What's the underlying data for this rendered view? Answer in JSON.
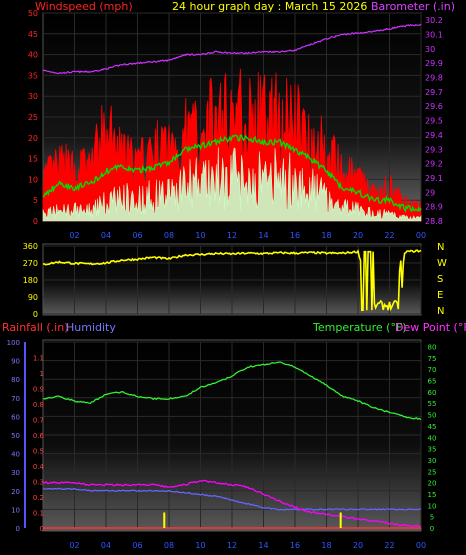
{
  "header": {
    "title": "24 hour graph day : March 15 2026",
    "wind_label": "Windspeed (mph)",
    "baro_label": "Barometer (.in)",
    "rain_label": "Rainfall (.in)",
    "humidity_label": "Humidity",
    "temp_label": "Temperature (°F)",
    "dew_label": "Dew Point (°F)"
  },
  "colors": {
    "wind": "#ff0000",
    "wind_avg": "#00dd00",
    "wind_low": "#ccffcc",
    "baro": "#cc33ff",
    "direction": "#ffff00",
    "temp": "#33ee33",
    "dew": "#ff00ff",
    "humidity": "#6666ff",
    "rain": "#ff3333",
    "rain_bar": "#ffff00",
    "title": "#ffff00"
  },
  "chart_data": [
    {
      "type": "line",
      "id": "wind_baro",
      "ylim": [
        0,
        50
      ],
      "y2lim": [
        28.8,
        30.25
      ],
      "yticks": [
        "0",
        "5",
        "10",
        "15",
        "20",
        "25",
        "30",
        "35",
        "40",
        "45",
        "50"
      ],
      "y2ticks": [
        "28.8",
        "28.9",
        "29",
        "29.1",
        "29.2",
        "29.3",
        "29.4",
        "29.5",
        "29.6",
        "29.7",
        "29.8",
        "29.9",
        "30",
        "30.1",
        "30.2"
      ],
      "xticks": [
        "02",
        "04",
        "06",
        "08",
        "10",
        "12",
        "14",
        "16",
        "18",
        "20",
        "22",
        "00"
      ],
      "x_hours": [
        0,
        1,
        2,
        3,
        4,
        5,
        6,
        7,
        8,
        9,
        10,
        11,
        12,
        13,
        14,
        15,
        16,
        17,
        18,
        19,
        20,
        21,
        22,
        23,
        24
      ],
      "series": [
        {
          "name": "Windspeed (mph)",
          "values": [
            12,
            16,
            15,
            16,
            26,
            19,
            16,
            20,
            21,
            25,
            27,
            30,
            33,
            31,
            30,
            31,
            29,
            25,
            20,
            14,
            12,
            8,
            10,
            5,
            5
          ]
        },
        {
          "name": "Wind average",
          "values": [
            6,
            9,
            8,
            9,
            12,
            13,
            12,
            13,
            14,
            17,
            18,
            19,
            20,
            20,
            19,
            19,
            17,
            15,
            12,
            8,
            7,
            5,
            5,
            3,
            3
          ]
        },
        {
          "name": "Wind low",
          "values": [
            2,
            3,
            3,
            3,
            5,
            7,
            6,
            7,
            8,
            10,
            11,
            12,
            12,
            12,
            12,
            12,
            11,
            9,
            7,
            4,
            3,
            2,
            2,
            1,
            1
          ]
        },
        {
          "name": "Barometer (.in)",
          "values": [
            29.85,
            29.83,
            29.84,
            29.84,
            29.86,
            29.89,
            29.9,
            29.91,
            29.92,
            29.96,
            29.96,
            29.98,
            29.97,
            29.97,
            29.98,
            29.98,
            29.99,
            30.03,
            30.07,
            30.1,
            30.11,
            30.12,
            30.14,
            30.16,
            30.17
          ]
        }
      ]
    },
    {
      "type": "line",
      "id": "wind_direction",
      "ylim": [
        0,
        360
      ],
      "yticks": [
        "0",
        "90",
        "180",
        "270",
        "360"
      ],
      "compass": [
        "N",
        "W",
        "S",
        "E",
        "N"
      ],
      "x_hours": [
        0,
        1,
        2,
        3,
        4,
        5,
        6,
        7,
        8,
        9,
        10,
        11,
        12,
        13,
        14,
        15,
        16,
        17,
        18,
        19,
        20,
        21,
        22,
        23,
        24
      ],
      "series": [
        {
          "name": "Wind direction",
          "values": [
            262,
            275,
            268,
            265,
            270,
            285,
            290,
            300,
            292,
            312,
            315,
            320,
            318,
            322,
            320,
            324,
            322,
            325,
            322,
            322,
            330,
            40,
            5,
            330,
            335
          ]
        }
      ]
    },
    {
      "type": "line",
      "id": "temp_hum_rain",
      "humidity_ylim": [
        0,
        100
      ],
      "humidity_ticks": [
        "0",
        "10",
        "20",
        "30",
        "40",
        "50",
        "60",
        "70",
        "80",
        "90",
        "100"
      ],
      "rain_ylim": [
        0,
        1.2
      ],
      "rain_ticks": [
        "0",
        "0.1",
        "0.2",
        "0.3",
        "0.4",
        "0.5",
        "0.6",
        "0.7",
        "0.8",
        "0.9",
        "1",
        "1.1"
      ],
      "temp_ylim": [
        0,
        82
      ],
      "temp_ticks": [
        "0",
        "5",
        "10",
        "15",
        "20",
        "25",
        "30",
        "35",
        "40",
        "45",
        "50",
        "55",
        "60",
        "65",
        "70",
        "75",
        "80"
      ],
      "xticks": [
        "02",
        "04",
        "06",
        "08",
        "10",
        "12",
        "14",
        "16",
        "18",
        "20",
        "22",
        "00"
      ],
      "x_hours": [
        0,
        1,
        2,
        3,
        4,
        5,
        6,
        7,
        8,
        9,
        10,
        11,
        12,
        13,
        14,
        15,
        16,
        17,
        18,
        19,
        20,
        21,
        22,
        23,
        24
      ],
      "series": [
        {
          "name": "Temperature (°F)",
          "values": [
            57,
            58,
            56,
            55,
            59,
            60,
            58,
            57,
            57,
            58,
            62,
            64,
            67,
            71,
            72,
            73,
            71,
            67,
            63,
            58,
            56,
            53,
            51,
            49,
            48
          ]
        },
        {
          "name": "Dew Point (°F)",
          "values": [
            20,
            20,
            20,
            19,
            19,
            19,
            19,
            19,
            18,
            19,
            21,
            20,
            19,
            18,
            15,
            12,
            9,
            7,
            6,
            5,
            4,
            3,
            2,
            1,
            1
          ]
        },
        {
          "name": "Humidity",
          "values": [
            21,
            21,
            21,
            20,
            20,
            20,
            20,
            20,
            20,
            19,
            18,
            17,
            15,
            13,
            11,
            10,
            10,
            10,
            10,
            10,
            10,
            10,
            10,
            10,
            10
          ]
        },
        {
          "name": "Rainfall (.in)",
          "values": [
            0,
            0,
            0,
            0,
            0,
            0,
            0,
            0,
            0,
            0,
            0,
            0,
            0,
            0,
            0,
            0,
            0,
            0,
            0,
            0,
            0,
            0,
            0,
            0,
            0
          ]
        }
      ],
      "rain_bars": [
        {
          "hour": 7.7,
          "value": 0.1
        },
        {
          "hour": 18.9,
          "value": 0.1
        }
      ]
    }
  ]
}
